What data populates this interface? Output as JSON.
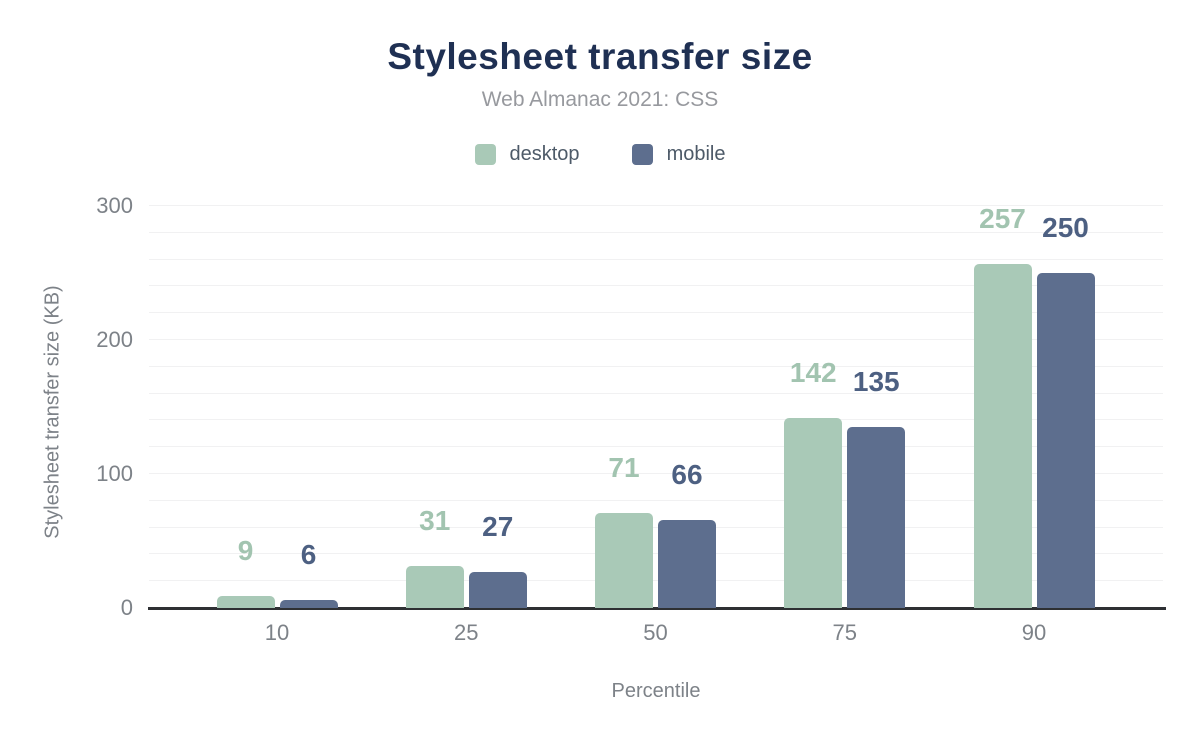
{
  "title": "Stylesheet transfer size",
  "subtitle": "Web Almanac 2021: CSS",
  "chart_data": {
    "type": "bar",
    "title": "Stylesheet transfer size",
    "subtitle": "Web Almanac 2021: CSS",
    "xlabel": "Percentile",
    "ylabel": "Stylesheet transfer size (KB)",
    "categories": [
      "10",
      "25",
      "50",
      "75",
      "90"
    ],
    "series": [
      {
        "name": "desktop",
        "values": [
          9,
          31,
          71,
          142,
          257
        ],
        "color": "#a9c9b7",
        "label_color": "#a2c4b0"
      },
      {
        "name": "mobile",
        "values": [
          6,
          27,
          66,
          135,
          250
        ],
        "color": "#5d6e8e",
        "label_color": "#4d6082"
      }
    ],
    "ylim": [
      0,
      300
    ],
    "yticks": [
      0,
      100,
      200,
      300
    ],
    "grid_step": 20,
    "grid": "on",
    "legend_position": "top",
    "data_labels": true
  },
  "colors": {
    "title": "#1f3053",
    "subtitle": "#97999e",
    "tick_labels": "#7d8288",
    "axis_titles": "#7d8288",
    "legend_text": "#4d5a68",
    "gridline": "#f1f1f2",
    "axis_line": "#2e3033",
    "background": "#ffffff"
  }
}
